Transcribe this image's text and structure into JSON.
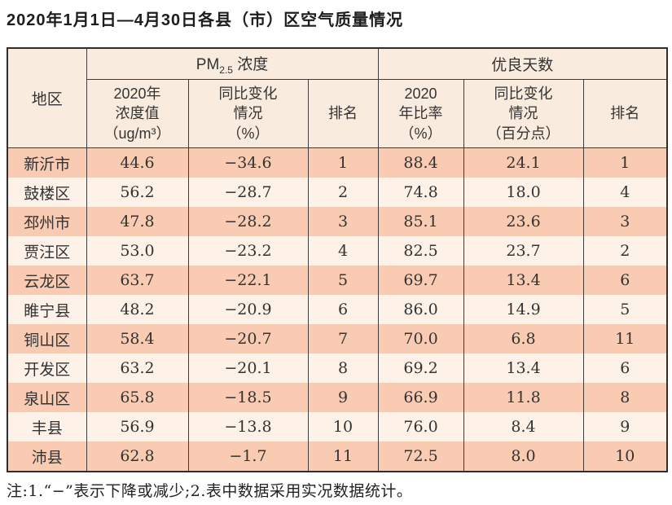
{
  "title": "2020年1月1日—4月30日各县（市）区空气质量情况",
  "note": "注:1.“−”表示下降或减少;2.表中数据采用实况数据统计。",
  "colors": {
    "header_bg": "#f9ecdf",
    "row_odd_bg": "#f8cbb2",
    "row_even_bg": "#fdf1e8",
    "border": "#3c3c3c",
    "text": "#333333"
  },
  "table": {
    "corner_header": "地区",
    "group1": {
      "pm": "PM",
      "sub": "2.5",
      "rest": " 浓度"
    },
    "group2": "优良天数",
    "sub_headers": [
      "2020年\n浓度值\n（ug/m³）",
      "同比变化\n情况\n（%）",
      "排名",
      "2020\n年比率\n（%）",
      "同比变化\n情况\n（百分点）",
      "排名"
    ],
    "rows": [
      {
        "region": "新沂市",
        "pm": "44.6",
        "pm_change": "−34.6",
        "pm_rank": "1",
        "ratio": "88.4",
        "ratio_change": "24.1",
        "ratio_rank": "1"
      },
      {
        "region": "鼓楼区",
        "pm": "56.2",
        "pm_change": "−28.7",
        "pm_rank": "2",
        "ratio": "74.8",
        "ratio_change": "18.0",
        "ratio_rank": "4"
      },
      {
        "region": "邳州市",
        "pm": "47.8",
        "pm_change": "−28.2",
        "pm_rank": "3",
        "ratio": "85.1",
        "ratio_change": "23.6",
        "ratio_rank": "3"
      },
      {
        "region": "贾汪区",
        "pm": "53.0",
        "pm_change": "−23.2",
        "pm_rank": "4",
        "ratio": "82.5",
        "ratio_change": "23.7",
        "ratio_rank": "2"
      },
      {
        "region": "云龙区",
        "pm": "63.7",
        "pm_change": "−22.1",
        "pm_rank": "5",
        "ratio": "69.7",
        "ratio_change": "13.4",
        "ratio_rank": "6"
      },
      {
        "region": "睢宁县",
        "pm": "48.2",
        "pm_change": "−20.9",
        "pm_rank": "6",
        "ratio": "86.0",
        "ratio_change": "14.9",
        "ratio_rank": "5"
      },
      {
        "region": "铜山区",
        "pm": "58.4",
        "pm_change": "−20.7",
        "pm_rank": "7",
        "ratio": "70.0",
        "ratio_change": "6.8",
        "ratio_rank": "11"
      },
      {
        "region": "开发区",
        "pm": "63.2",
        "pm_change": "−20.1",
        "pm_rank": "8",
        "ratio": "69.2",
        "ratio_change": "13.4",
        "ratio_rank": "6"
      },
      {
        "region": "泉山区",
        "pm": "65.8",
        "pm_change": "−18.5",
        "pm_rank": "9",
        "ratio": "66.9",
        "ratio_change": "11.8",
        "ratio_rank": "8"
      },
      {
        "region": "丰县",
        "pm": "56.9",
        "pm_change": "−13.8",
        "pm_rank": "10",
        "ratio": "76.0",
        "ratio_change": "8.4",
        "ratio_rank": "9"
      },
      {
        "region": "沛县",
        "pm": "62.8",
        "pm_change": "−1.7",
        "pm_rank": "11",
        "ratio": "72.5",
        "ratio_change": "8.0",
        "ratio_rank": "10"
      }
    ]
  }
}
